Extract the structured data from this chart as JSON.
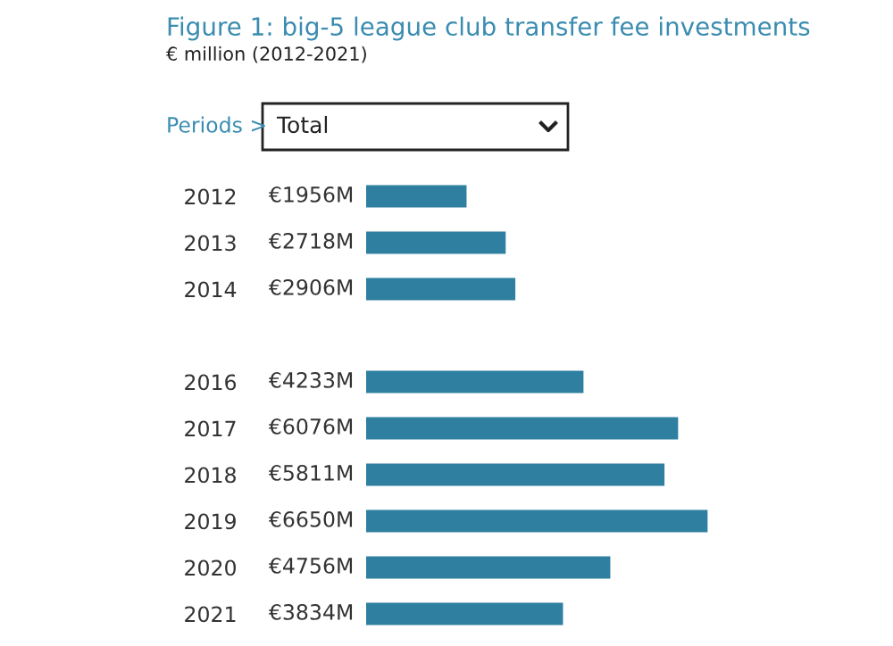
{
  "chart_data": {
    "type": "bar",
    "orientation": "horizontal",
    "title": "Figure 1: big-5 league club transfer fee investments",
    "subtitle": "€ million (2012-2021)",
    "annotations": [
      "Periods >",
      "Total"
    ],
    "categories": [
      "2012",
      "2013",
      "2014",
      null,
      "2016",
      "2017",
      "2018",
      "2019",
      "2020",
      "2021"
    ],
    "values": [
      1956,
      2718,
      2906,
      null,
      4233,
      6076,
      5811,
      6650,
      4756,
      3834
    ],
    "value_labels": [
      "€1956M",
      "€2718M",
      "€2906M",
      null,
      "€4233M",
      "€6076M",
      "€5811M",
      "€6650M",
      "€4756M",
      "€3834M"
    ],
    "color": "#2e7fa0"
  }
}
